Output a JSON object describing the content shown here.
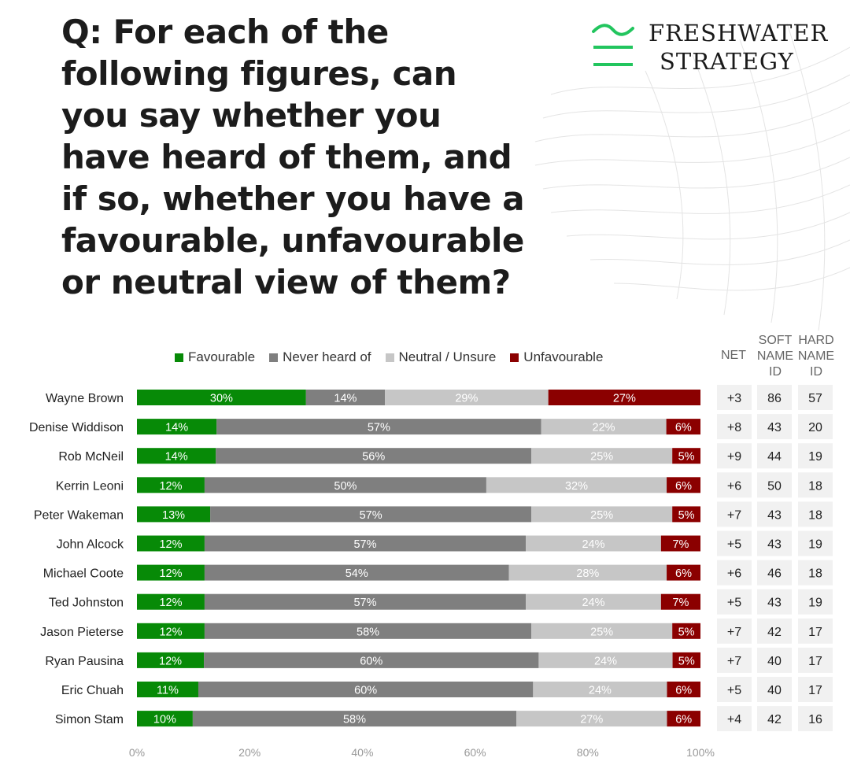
{
  "title": "Q: For each of the following figures, can you say whether you have heard of them, and if so, whether you have a favourable, unfavourable or neutral view of them?",
  "logo": {
    "line1": "FRESHWATER",
    "line2": "STRATEGY"
  },
  "columns": {
    "net": "NET",
    "soft": "SOFT NAME ID",
    "hard": "HARD NAME ID"
  },
  "colors": {
    "favourable": "#078a07",
    "never": "#7f7f7f",
    "neutral": "#c6c6c6",
    "unfavourable": "#8b0000",
    "logo_green": "#22c55e"
  },
  "chart_data": {
    "type": "bar",
    "orientation": "horizontal",
    "stacked": true,
    "xlim": [
      0,
      100
    ],
    "xticks": [
      "0%",
      "20%",
      "40%",
      "60%",
      "80%",
      "100%"
    ],
    "legend_position": "top",
    "categories": [
      "Wayne Brown",
      "Denise Widdison",
      "Rob McNeil",
      "Kerrin Leoni",
      "Peter Wakeman",
      "John Alcock",
      "Michael Coote",
      "Ted Johnston",
      "Jason Pieterse",
      "Ryan Pausina",
      "Eric Chuah",
      "Simon Stam"
    ],
    "series": [
      {
        "name": "Favourable",
        "values": [
          30,
          14,
          14,
          12,
          13,
          12,
          12,
          12,
          12,
          12,
          11,
          10
        ]
      },
      {
        "name": "Never heard of",
        "values": [
          14,
          57,
          56,
          50,
          57,
          57,
          54,
          57,
          58,
          60,
          60,
          58
        ]
      },
      {
        "name": "Neutral / Unsure",
        "values": [
          29,
          22,
          25,
          32,
          25,
          24,
          28,
          24,
          25,
          24,
          24,
          27
        ]
      },
      {
        "name": "Unfavourable",
        "values": [
          27,
          6,
          5,
          6,
          5,
          7,
          6,
          7,
          5,
          5,
          6,
          6
        ]
      }
    ],
    "net": [
      "+3",
      "+8",
      "+9",
      "+6",
      "+7",
      "+5",
      "+6",
      "+5",
      "+7",
      "+7",
      "+5",
      "+4"
    ],
    "soft_name_id": [
      86,
      43,
      44,
      50,
      43,
      43,
      46,
      43,
      42,
      40,
      40,
      42
    ],
    "hard_name_id": [
      57,
      20,
      19,
      18,
      18,
      19,
      18,
      19,
      17,
      17,
      17,
      16
    ]
  }
}
